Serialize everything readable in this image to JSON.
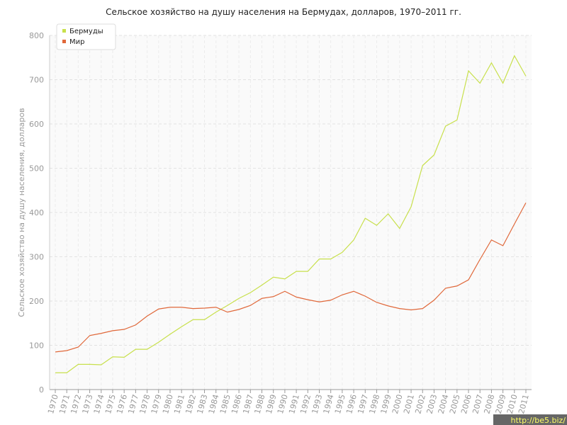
{
  "chart_data": {
    "type": "line",
    "title": "Сельское хозяйство на душу населения на Бермудах, долларов, 1970–2011 гг.",
    "y_label": "Сельское хозяйство на душу населения, долларов",
    "categories": [
      "1970",
      "1971",
      "1972",
      "1973",
      "1974",
      "1975",
      "1976",
      "1977",
      "1978",
      "1979",
      "1980",
      "1981",
      "1982",
      "1983",
      "1984",
      "1985",
      "1986",
      "1987",
      "1988",
      "1989",
      "1990",
      "1991",
      "1992",
      "1993",
      "1994",
      "1995",
      "1996",
      "1997",
      "1998",
      "1999",
      "2000",
      "2001",
      "2002",
      "2003",
      "2004",
      "2005",
      "2006",
      "2007",
      "2008",
      "2009",
      "2010",
      "2011"
    ],
    "series": [
      {
        "name": "Бермуды",
        "color": "#c8e04c",
        "values": [
          38,
          38,
          57,
          57,
          56,
          74,
          73,
          91,
          91,
          107,
          125,
          142,
          158,
          158,
          175,
          190,
          206,
          219,
          236,
          254,
          250,
          267,
          267,
          295,
          295,
          310,
          338,
          387,
          371,
          397,
          364,
          413,
          506,
          530,
          595,
          609,
          720,
          692,
          738,
          692,
          754,
          708
        ]
      },
      {
        "name": "Мир",
        "color": "#e0683a",
        "values": [
          85,
          88,
          96,
          122,
          127,
          133,
          136,
          146,
          166,
          182,
          186,
          186,
          183,
          184,
          186,
          175,
          181,
          190,
          206,
          210,
          222,
          209,
          203,
          198,
          202,
          214,
          222,
          211,
          197,
          189,
          183,
          180,
          183,
          202,
          229,
          234,
          248,
          294,
          338,
          325,
          374,
          422
        ]
      }
    ],
    "ylim": [
      0,
      800
    ],
    "yticks": [
      0,
      100,
      200,
      300,
      400,
      500,
      600,
      700,
      800
    ],
    "grid": true,
    "legend": "top-left",
    "watermark": "http://be5.biz/"
  }
}
